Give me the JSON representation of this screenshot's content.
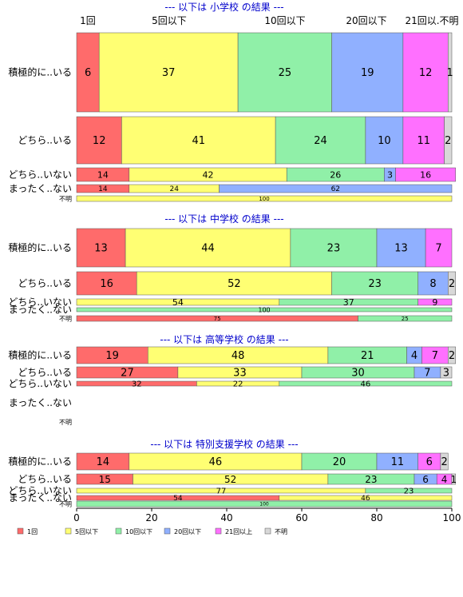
{
  "colors": {
    "c1": "#ff6b6b",
    "c2": "#ffff73",
    "c3": "#90f0a8",
    "c4": "#90b0ff",
    "c5": "#ff70ff",
    "c6": "#d8d8d8",
    "title": "#0000cc"
  },
  "top_labels": [
    "1回",
    "5回以下",
    "10回以下",
    "20回以下",
    "21回以.不明"
  ],
  "legend": [
    "1回",
    "5回以下",
    "10回以下",
    "20回以下",
    "21回以上",
    "不明"
  ],
  "xaxis": {
    "ticks": [
      0,
      20,
      40,
      60,
      80,
      100
    ]
  },
  "chart_data": {
    "type": "bar",
    "orientation": "horizontal-stacked",
    "xlim": [
      0,
      100
    ],
    "categories": [
      "1回",
      "5回以下",
      "10回以下",
      "20回以下",
      "21回以上",
      "不明"
    ],
    "panels": [
      {
        "title": "--- 以下は 小学校 の結果 ---",
        "rows": [
          {
            "label": "積極的に..いる",
            "values": [
              6,
              37,
              25,
              19,
              12,
              1
            ]
          },
          {
            "label": "どちら..いる",
            "values": [
              12,
              41,
              24,
              10,
              11,
              2
            ]
          },
          {
            "label": "どちら..いない",
            "values": [
              14,
              42,
              26,
              3,
              16,
              0
            ]
          },
          {
            "label": "まったく..ない",
            "values": [
              14,
              24,
              0,
              62,
              0,
              0
            ]
          },
          {
            "label": "不明",
            "values": [
              0,
              100,
              0,
              0,
              0,
              0
            ]
          }
        ]
      },
      {
        "title": "--- 以下は 中学校 の結果 ---",
        "rows": [
          {
            "label": "積極的に..いる",
            "values": [
              13,
              44,
              23,
              13,
              7,
              0
            ]
          },
          {
            "label": "どちら..いる",
            "values": [
              16,
              52,
              23,
              8,
              0,
              2
            ]
          },
          {
            "label": "どちら..いない",
            "values": [
              0,
              54,
              37,
              0,
              9,
              0
            ]
          },
          {
            "label": "まったく..ない",
            "values": [
              0,
              0,
              100,
              0,
              0,
              0
            ]
          },
          {
            "label": "不明",
            "values": [
              75,
              0,
              25,
              0,
              0,
              0
            ]
          }
        ]
      },
      {
        "title": "--- 以下は 高等学校 の結果 ---",
        "rows": [
          {
            "label": "積極的に..いる",
            "values": [
              19,
              48,
              21,
              4,
              7,
              2
            ]
          },
          {
            "label": "どちら..いる",
            "values": [
              27,
              33,
              30,
              7,
              0,
              3
            ]
          },
          {
            "label": "どちら..いない",
            "values": [
              32,
              22,
              46,
              0,
              0,
              0
            ]
          },
          {
            "label": "まったく..ない",
            "values": [
              0,
              0,
              0,
              0,
              0,
              0
            ]
          },
          {
            "label": "不明",
            "values": [
              0,
              0,
              0,
              0,
              0,
              0
            ]
          }
        ]
      },
      {
        "title": "--- 以下は 特別支援学校 の結果 ---",
        "rows": [
          {
            "label": "積極的に..いる",
            "values": [
              14,
              46,
              20,
              11,
              6,
              2
            ]
          },
          {
            "label": "どちら..いる",
            "values": [
              15,
              52,
              23,
              6,
              4,
              1
            ]
          },
          {
            "label": "どちら..いない",
            "values": [
              0,
              77,
              23,
              0,
              0,
              0
            ]
          },
          {
            "label": "まったく..ない",
            "values": [
              54,
              46,
              0,
              0,
              0,
              0
            ]
          },
          {
            "label": "不明",
            "values": [
              0,
              0,
              100,
              0,
              0,
              0
            ]
          }
        ]
      }
    ]
  }
}
